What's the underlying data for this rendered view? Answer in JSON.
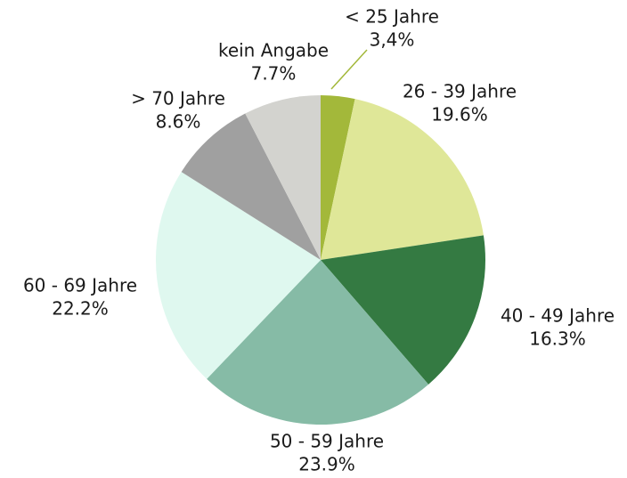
{
  "chart_data": {
    "type": "pie",
    "categories": [
      "< 25 Jahre",
      "26 - 39 Jahre",
      "40 - 49 Jahre",
      "50 - 59 Jahre",
      "60 - 69 Jahre",
      "> 70 Jahre",
      "kein Angabe"
    ],
    "values": [
      3.4,
      19.6,
      16.3,
      23.9,
      22.2,
      8.6,
      7.7
    ],
    "value_labels": [
      "3,4%",
      "19.6%",
      "16.3%",
      "23.9%",
      "22.2%",
      "8.6%",
      "7.7%"
    ],
    "colors": [
      "#a3b83a",
      "#dfe798",
      "#347a42",
      "#86bba6",
      "#dff8ef",
      "#a0a0a0",
      "#d3d3cf"
    ]
  }
}
